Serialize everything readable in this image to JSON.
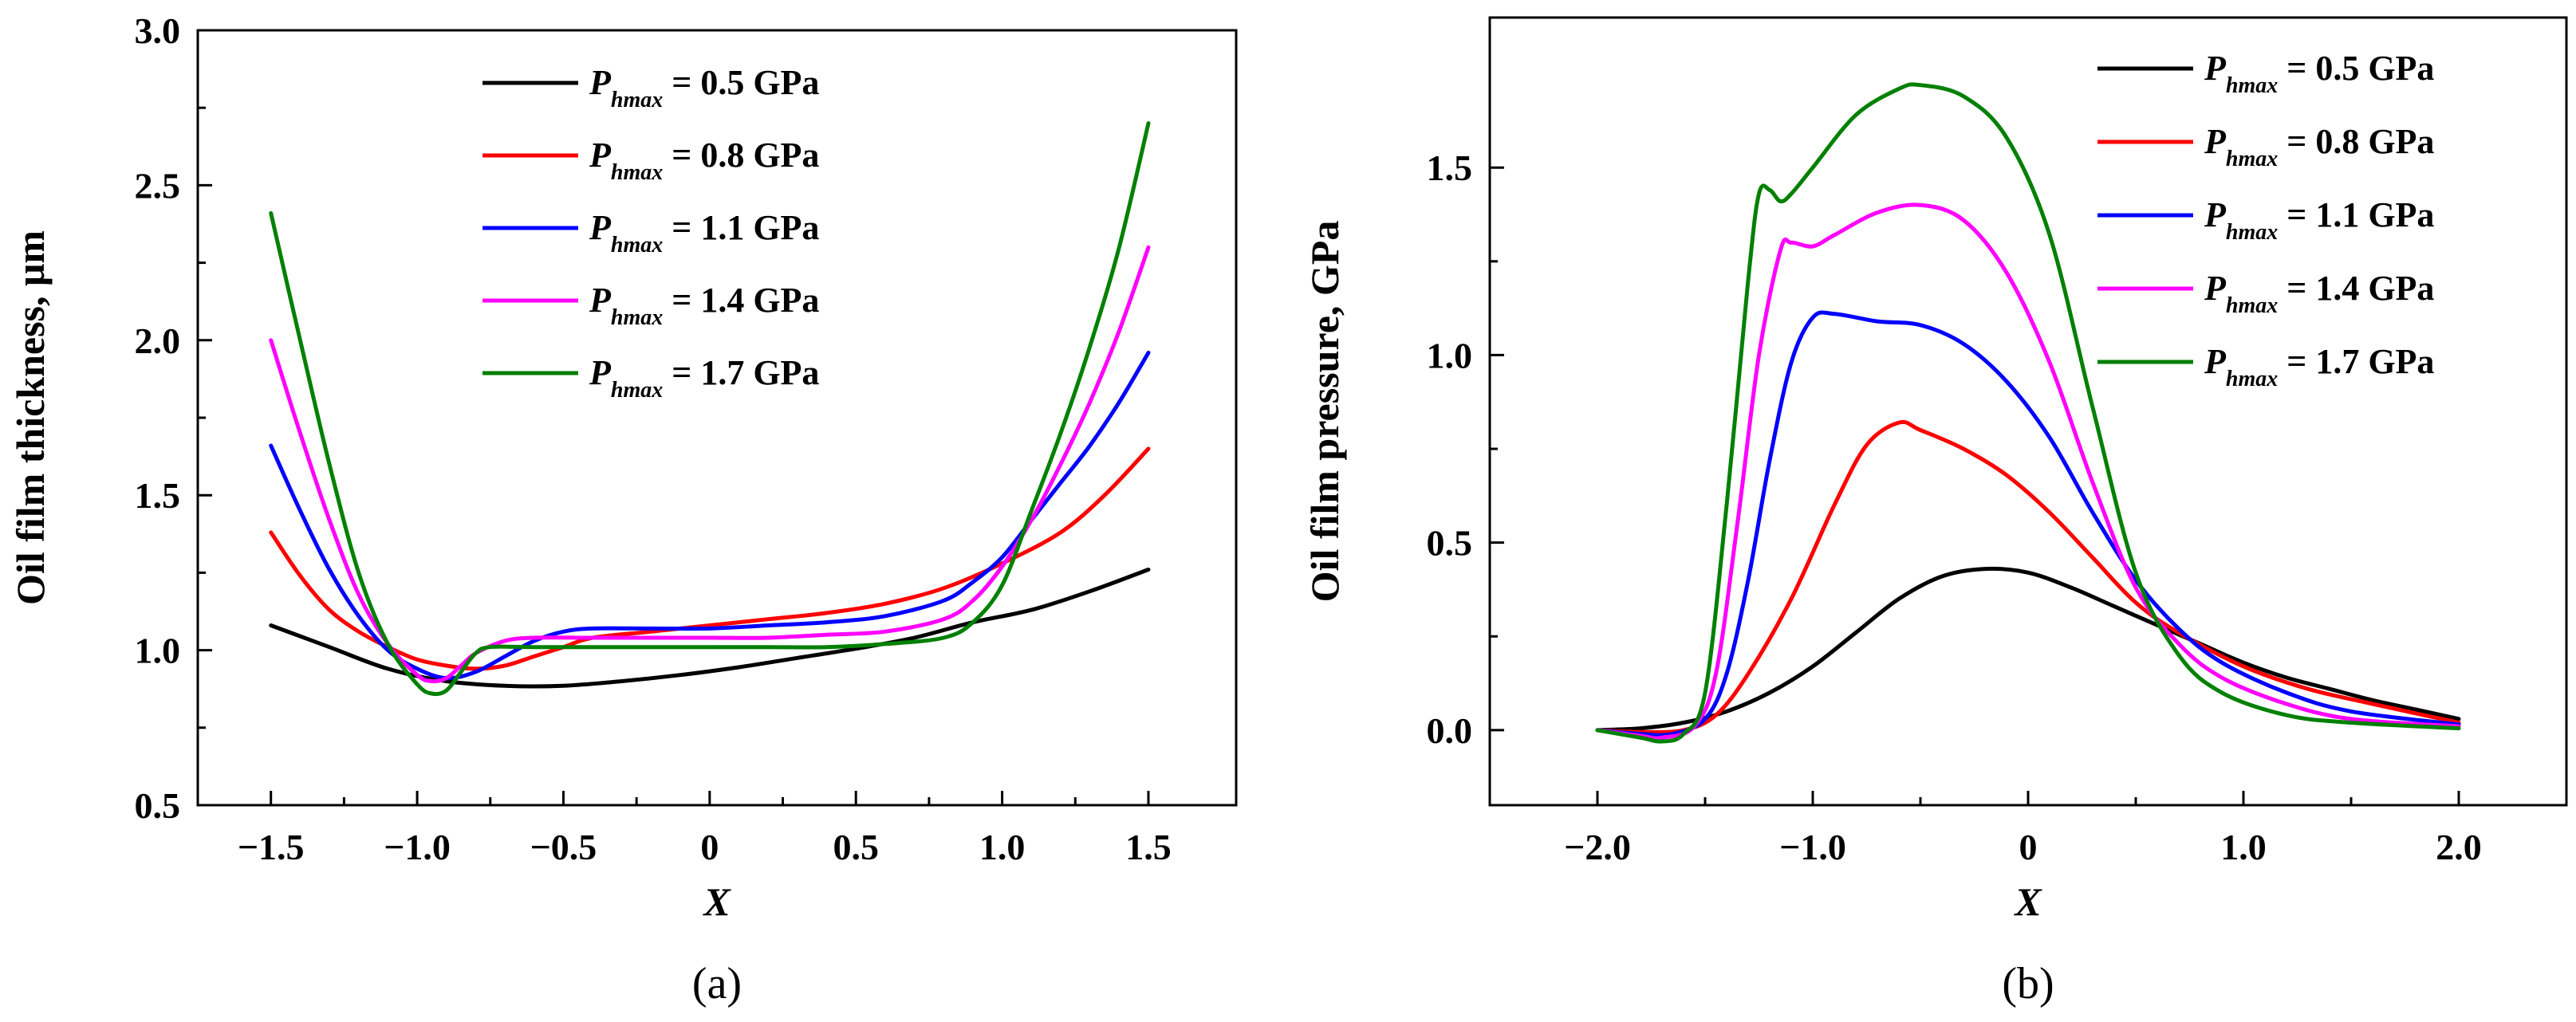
{
  "chart_data": [
    {
      "id": "a",
      "type": "line",
      "caption": "(a)",
      "xlabel": "X",
      "ylabel": "Oil film thickness,  μm",
      "xlim": [
        -1.75,
        1.8
      ],
      "ylim": [
        0.5,
        3.0
      ],
      "xticks": [
        -1.5,
        -1.0,
        -0.5,
        0,
        0.5,
        1.0,
        1.5
      ],
      "xtick_labels": [
        "−1.5",
        "−1.0",
        "−0.5",
        "0",
        "0.5",
        "1.0",
        "1.5"
      ],
      "yticks": [
        0.5,
        1.0,
        1.5,
        2.0,
        2.5,
        3.0
      ],
      "ytick_labels": [
        "0.5",
        "1.0",
        "1.5",
        "2.0",
        "2.5",
        "3.0"
      ],
      "legend_position": "top-center",
      "series": [
        {
          "name": "P_hmax = 0.5 GPa",
          "label_p": "P",
          "label_sub": "hmax",
          "label_rest": " = 0.5 GPa",
          "color": "#000000",
          "points": [
            [
              -1.5,
              1.08
            ],
            [
              -1.3,
              1.01
            ],
            [
              -1.1,
              0.94
            ],
            [
              -0.9,
              0.9
            ],
            [
              -0.7,
              0.885
            ],
            [
              -0.5,
              0.885
            ],
            [
              -0.3,
              0.9
            ],
            [
              -0.1,
              0.92
            ],
            [
              0.1,
              0.945
            ],
            [
              0.3,
              0.975
            ],
            [
              0.5,
              1.005
            ],
            [
              0.7,
              1.04
            ],
            [
              0.9,
              1.09
            ],
            [
              1.1,
              1.13
            ],
            [
              1.3,
              1.19
            ],
            [
              1.5,
              1.26
            ]
          ]
        },
        {
          "name": "P_hmax = 0.8 GPa",
          "label_p": "P",
          "label_sub": "hmax",
          "label_rest": " = 0.8 GPa",
          "color": "#ff0000",
          "points": [
            [
              -1.5,
              1.38
            ],
            [
              -1.4,
              1.24
            ],
            [
              -1.3,
              1.13
            ],
            [
              -1.2,
              1.06
            ],
            [
              -1.1,
              1.01
            ],
            [
              -1.0,
              0.97
            ],
            [
              -0.9,
              0.95
            ],
            [
              -0.8,
              0.94
            ],
            [
              -0.7,
              0.95
            ],
            [
              -0.6,
              0.98
            ],
            [
              -0.5,
              1.01
            ],
            [
              -0.4,
              1.04
            ],
            [
              -0.2,
              1.06
            ],
            [
              0,
              1.08
            ],
            [
              0.2,
              1.1
            ],
            [
              0.4,
              1.12
            ],
            [
              0.6,
              1.15
            ],
            [
              0.8,
              1.2
            ],
            [
              1.0,
              1.28
            ],
            [
              1.2,
              1.38
            ],
            [
              1.35,
              1.5
            ],
            [
              1.5,
              1.65
            ]
          ]
        },
        {
          "name": "P_hmax = 1.1 GPa",
          "label_p": "P",
          "label_sub": "hmax",
          "label_rest": " = 1.1 GPa",
          "color": "#0000ff",
          "points": [
            [
              -1.5,
              1.66
            ],
            [
              -1.4,
              1.45
            ],
            [
              -1.3,
              1.26
            ],
            [
              -1.2,
              1.11
            ],
            [
              -1.1,
              1.0
            ],
            [
              -1.0,
              0.94
            ],
            [
              -0.9,
              0.91
            ],
            [
              -0.8,
              0.93
            ],
            [
              -0.7,
              0.98
            ],
            [
              -0.6,
              1.03
            ],
            [
              -0.5,
              1.06
            ],
            [
              -0.4,
              1.07
            ],
            [
              -0.2,
              1.07
            ],
            [
              0,
              1.07
            ],
            [
              0.2,
              1.08
            ],
            [
              0.4,
              1.09
            ],
            [
              0.6,
              1.11
            ],
            [
              0.8,
              1.16
            ],
            [
              0.9,
              1.22
            ],
            [
              1.0,
              1.3
            ],
            [
              1.1,
              1.42
            ],
            [
              1.2,
              1.54
            ],
            [
              1.3,
              1.66
            ],
            [
              1.4,
              1.8
            ],
            [
              1.5,
              1.96
            ]
          ]
        },
        {
          "name": "P_hmax = 1.4 GPa",
          "label_p": "P",
          "label_sub": "hmax",
          "label_rest": " = 1.4 GPa",
          "color": "#ff00ff",
          "points": [
            [
              -1.5,
              2.0
            ],
            [
              -1.4,
              1.7
            ],
            [
              -1.3,
              1.42
            ],
            [
              -1.2,
              1.18
            ],
            [
              -1.1,
              1.02
            ],
            [
              -1.0,
              0.92
            ],
            [
              -0.95,
              0.9
            ],
            [
              -0.9,
              0.91
            ],
            [
              -0.85,
              0.95
            ],
            [
              -0.8,
              0.99
            ],
            [
              -0.7,
              1.03
            ],
            [
              -0.6,
              1.04
            ],
            [
              -0.4,
              1.04
            ],
            [
              -0.2,
              1.04
            ],
            [
              0,
              1.04
            ],
            [
              0.2,
              1.04
            ],
            [
              0.4,
              1.05
            ],
            [
              0.6,
              1.06
            ],
            [
              0.8,
              1.1
            ],
            [
              0.9,
              1.16
            ],
            [
              1.0,
              1.27
            ],
            [
              1.1,
              1.42
            ],
            [
              1.2,
              1.6
            ],
            [
              1.3,
              1.8
            ],
            [
              1.4,
              2.03
            ],
            [
              1.5,
              2.3
            ]
          ]
        },
        {
          "name": "P_hmax = 1.7 GPa",
          "label_p": "P",
          "label_sub": "hmax",
          "label_rest": " = 1.7 GPa",
          "color": "#008000",
          "points": [
            [
              -1.5,
              2.41
            ],
            [
              -1.4,
              2.0
            ],
            [
              -1.3,
              1.6
            ],
            [
              -1.2,
              1.25
            ],
            [
              -1.1,
              1.02
            ],
            [
              -1.0,
              0.89
            ],
            [
              -0.95,
              0.86
            ],
            [
              -0.9,
              0.87
            ],
            [
              -0.85,
              0.93
            ],
            [
              -0.8,
              0.99
            ],
            [
              -0.75,
              1.01
            ],
            [
              -0.6,
              1.01
            ],
            [
              -0.4,
              1.01
            ],
            [
              -0.2,
              1.01
            ],
            [
              0,
              1.01
            ],
            [
              0.2,
              1.01
            ],
            [
              0.4,
              1.01
            ],
            [
              0.6,
              1.02
            ],
            [
              0.8,
              1.04
            ],
            [
              0.9,
              1.09
            ],
            [
              1.0,
              1.21
            ],
            [
              1.1,
              1.45
            ],
            [
              1.2,
              1.7
            ],
            [
              1.3,
              1.98
            ],
            [
              1.4,
              2.3
            ],
            [
              1.5,
              2.7
            ]
          ]
        }
      ]
    },
    {
      "id": "b",
      "type": "line",
      "caption": "(b)",
      "xlabel": "X",
      "ylabel": "Oil film pressure,   GPa",
      "xlim": [
        -2.5,
        2.5
      ],
      "ylim": [
        -0.2,
        1.9
      ],
      "xticks": [
        -2.0,
        -1.0,
        0,
        1.0,
        2.0
      ],
      "xtick_labels": [
        "−2.0",
        "−1.0",
        "0",
        "1.0",
        "2.0"
      ],
      "yticks": [
        0.0,
        0.5,
        1.0,
        1.5
      ],
      "ytick_labels": [
        "0.0",
        "0.5",
        "1.0",
        "1.5"
      ],
      "legend_position": "top-right",
      "series": [
        {
          "name": "P_hmax = 0.5 GPa",
          "label_p": "P",
          "label_sub": "hmax",
          "label_rest": " = 0.5 GPa",
          "color": "#000000",
          "points": [
            [
              -2.0,
              0.0
            ],
            [
              -1.8,
              0.005
            ],
            [
              -1.6,
              0.02
            ],
            [
              -1.4,
              0.05
            ],
            [
              -1.2,
              0.1
            ],
            [
              -1.0,
              0.17
            ],
            [
              -0.8,
              0.26
            ],
            [
              -0.6,
              0.35
            ],
            [
              -0.4,
              0.41
            ],
            [
              -0.2,
              0.43
            ],
            [
              0,
              0.42
            ],
            [
              0.2,
              0.38
            ],
            [
              0.4,
              0.33
            ],
            [
              0.6,
              0.28
            ],
            [
              0.8,
              0.23
            ],
            [
              1.0,
              0.18
            ],
            [
              1.2,
              0.14
            ],
            [
              1.4,
              0.11
            ],
            [
              1.6,
              0.08
            ],
            [
              1.8,
              0.055
            ],
            [
              2.0,
              0.03
            ]
          ]
        },
        {
          "name": "P_hmax = 0.8 GPa",
          "label_p": "P",
          "label_sub": "hmax",
          "label_rest": " = 0.8 GPa",
          "color": "#ff0000",
          "points": [
            [
              -2.0,
              0.0
            ],
            [
              -1.8,
              -0.005
            ],
            [
              -1.6,
              0.0
            ],
            [
              -1.45,
              0.04
            ],
            [
              -1.3,
              0.15
            ],
            [
              -1.1,
              0.35
            ],
            [
              -0.9,
              0.6
            ],
            [
              -0.75,
              0.76
            ],
            [
              -0.6,
              0.82
            ],
            [
              -0.5,
              0.8
            ],
            [
              -0.3,
              0.75
            ],
            [
              -0.1,
              0.68
            ],
            [
              0.1,
              0.58
            ],
            [
              0.3,
              0.46
            ],
            [
              0.5,
              0.34
            ],
            [
              0.7,
              0.26
            ],
            [
              1.0,
              0.17
            ],
            [
              1.3,
              0.11
            ],
            [
              1.6,
              0.07
            ],
            [
              2.0,
              0.02
            ]
          ]
        },
        {
          "name": "P_hmax = 1.1 GPa",
          "label_p": "P",
          "label_sub": "hmax",
          "label_rest": " = 1.1 GPa",
          "color": "#0000ff",
          "points": [
            [
              -2.0,
              0.0
            ],
            [
              -1.8,
              -0.01
            ],
            [
              -1.65,
              -0.01
            ],
            [
              -1.5,
              0.03
            ],
            [
              -1.4,
              0.15
            ],
            [
              -1.3,
              0.4
            ],
            [
              -1.2,
              0.72
            ],
            [
              -1.1,
              0.98
            ],
            [
              -1.0,
              1.1
            ],
            [
              -0.9,
              1.11
            ],
            [
              -0.7,
              1.09
            ],
            [
              -0.5,
              1.08
            ],
            [
              -0.3,
              1.03
            ],
            [
              -0.1,
              0.93
            ],
            [
              0.1,
              0.78
            ],
            [
              0.3,
              0.58
            ],
            [
              0.5,
              0.4
            ],
            [
              0.7,
              0.27
            ],
            [
              0.9,
              0.18
            ],
            [
              1.2,
              0.1
            ],
            [
              1.5,
              0.05
            ],
            [
              2.0,
              0.015
            ]
          ]
        },
        {
          "name": "P_hmax = 1.4 GPa",
          "label_p": "P",
          "label_sub": "hmax",
          "label_rest": " = 1.4 GPa",
          "color": "#ff00ff",
          "points": [
            [
              -2.0,
              0.0
            ],
            [
              -1.8,
              -0.015
            ],
            [
              -1.7,
              -0.02
            ],
            [
              -1.55,
              0.01
            ],
            [
              -1.45,
              0.15
            ],
            [
              -1.35,
              0.55
            ],
            [
              -1.25,
              1.0
            ],
            [
              -1.15,
              1.28
            ],
            [
              -1.1,
              1.3
            ],
            [
              -1.0,
              1.29
            ],
            [
              -0.9,
              1.32
            ],
            [
              -0.7,
              1.38
            ],
            [
              -0.5,
              1.4
            ],
            [
              -0.3,
              1.36
            ],
            [
              -0.1,
              1.22
            ],
            [
              0.1,
              0.98
            ],
            [
              0.3,
              0.66
            ],
            [
              0.5,
              0.38
            ],
            [
              0.7,
              0.23
            ],
            [
              0.9,
              0.14
            ],
            [
              1.2,
              0.07
            ],
            [
              1.5,
              0.03
            ],
            [
              2.0,
              0.01
            ]
          ]
        },
        {
          "name": "P_hmax = 1.7 GPa",
          "label_p": "P",
          "label_sub": "hmax",
          "label_rest": " = 1.7 GPa",
          "color": "#008000",
          "points": [
            [
              -2.0,
              0.0
            ],
            [
              -1.8,
              -0.02
            ],
            [
              -1.7,
              -0.03
            ],
            [
              -1.6,
              -0.01
            ],
            [
              -1.5,
              0.1
            ],
            [
              -1.4,
              0.6
            ],
            [
              -1.3,
              1.2
            ],
            [
              -1.25,
              1.43
            ],
            [
              -1.2,
              1.44
            ],
            [
              -1.15,
              1.41
            ],
            [
              -1.1,
              1.43
            ],
            [
              -1.0,
              1.5
            ],
            [
              -0.8,
              1.64
            ],
            [
              -0.6,
              1.71
            ],
            [
              -0.5,
              1.72
            ],
            [
              -0.3,
              1.69
            ],
            [
              -0.1,
              1.58
            ],
            [
              0.1,
              1.32
            ],
            [
              0.3,
              0.86
            ],
            [
              0.5,
              0.42
            ],
            [
              0.7,
              0.2
            ],
            [
              0.9,
              0.1
            ],
            [
              1.2,
              0.04
            ],
            [
              1.5,
              0.02
            ],
            [
              2.0,
              0.005
            ]
          ]
        }
      ]
    }
  ]
}
